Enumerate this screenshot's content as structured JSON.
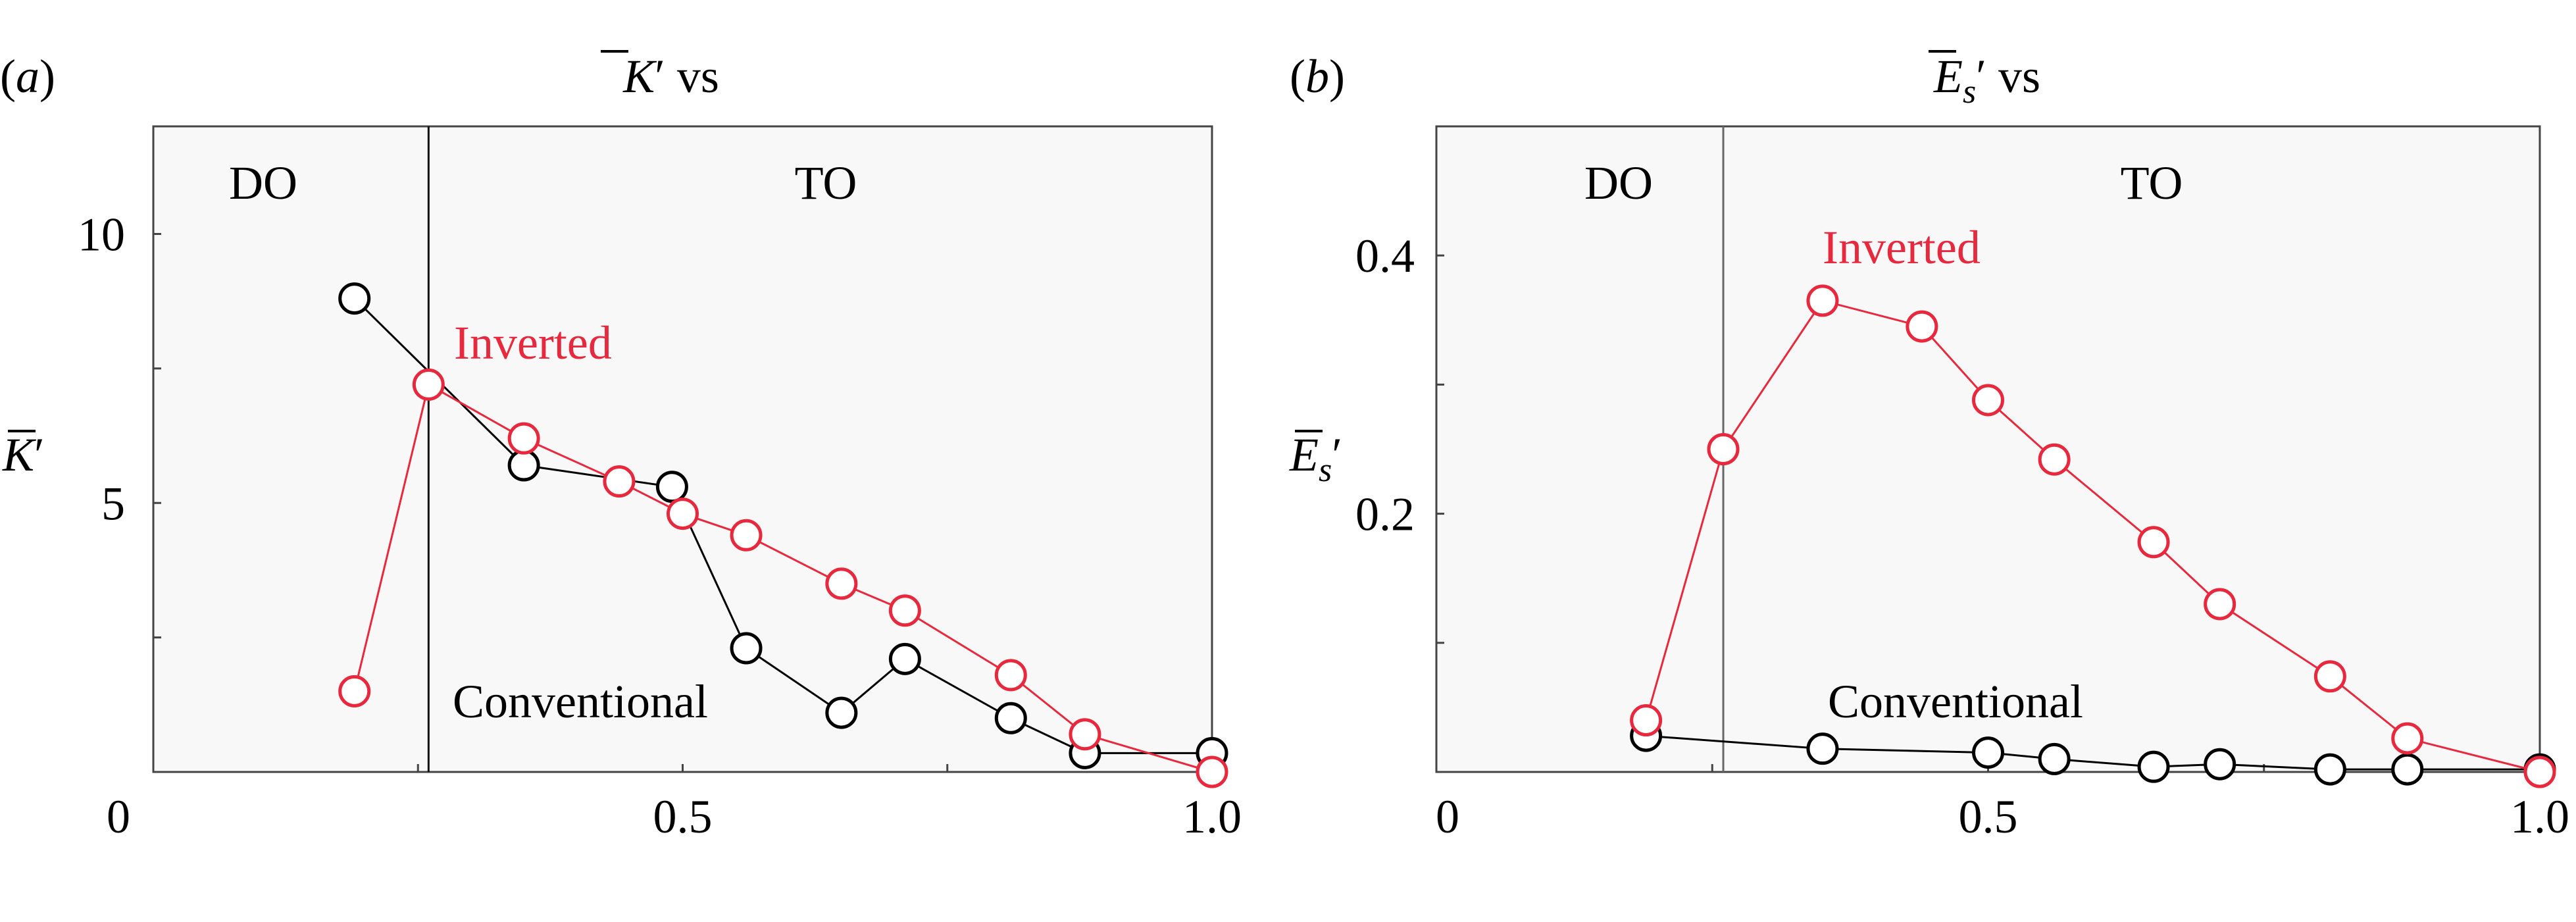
{
  "chart_data": [
    {
      "type": "line",
      "panel": "(a)",
      "title": "K̄′ vs",
      "title_symbol": "K",
      "title_suffix": " vs",
      "xlabel": "",
      "ylabel": "K̄′",
      "xlim": [
        0,
        1.0
      ],
      "ylim": [
        0,
        12
      ],
      "xticks": [
        "0",
        "0.5",
        "1.0"
      ],
      "yticks": [
        "5",
        "10"
      ],
      "regions": [
        {
          "label": "DO"
        },
        {
          "label": "TO"
        }
      ],
      "region_divider_x": 0.26,
      "grid": false,
      "series": [
        {
          "name": "Inverted",
          "color": "#e8283c",
          "x": [
            0.19,
            0.26,
            0.35,
            0.44,
            0.5,
            0.56,
            0.65,
            0.71,
            0.81,
            0.88,
            1.0
          ],
          "y": [
            1.5,
            7.2,
            6.2,
            5.4,
            4.8,
            4.4,
            3.5,
            3.0,
            1.8,
            0.7,
            0.0
          ]
        },
        {
          "name": "Conventional",
          "color": "#000000",
          "x": [
            0.19,
            0.35,
            0.49,
            0.56,
            0.65,
            0.71,
            0.81,
            0.88,
            1.0
          ],
          "y": [
            8.8,
            5.7,
            5.3,
            2.3,
            1.1,
            2.1,
            1.0,
            0.35,
            0.35
          ]
        }
      ]
    },
    {
      "type": "line",
      "panel": "(b)",
      "title": "Ē′s vs",
      "title_symbol": "E",
      "title_suffix": " vs",
      "xlabel": "",
      "ylabel": "Ē′s",
      "xlim": [
        0,
        1.0
      ],
      "ylim": [
        0,
        0.5
      ],
      "xticks": [
        "0",
        "0.5",
        "1.0"
      ],
      "yticks": [
        "0.2",
        "0.4"
      ],
      "regions": [
        {
          "label": "DO"
        },
        {
          "label": "TO"
        }
      ],
      "region_divider_x": 0.26,
      "grid": false,
      "series": [
        {
          "name": "Inverted",
          "color": "#e8283c",
          "x": [
            0.19,
            0.26,
            0.35,
            0.44,
            0.5,
            0.56,
            0.65,
            0.71,
            0.81,
            0.88,
            1.0
          ],
          "y": [
            0.04,
            0.25,
            0.365,
            0.345,
            0.288,
            0.242,
            0.178,
            0.13,
            0.074,
            0.026,
            0.0
          ]
        },
        {
          "name": "Conventional",
          "color": "#000000",
          "x": [
            0.19,
            0.35,
            0.5,
            0.56,
            0.65,
            0.71,
            0.81,
            0.88,
            1.0
          ],
          "y": [
            0.028,
            0.018,
            0.015,
            0.01,
            0.004,
            0.006,
            0.002,
            0.002,
            0.002
          ]
        }
      ]
    }
  ]
}
